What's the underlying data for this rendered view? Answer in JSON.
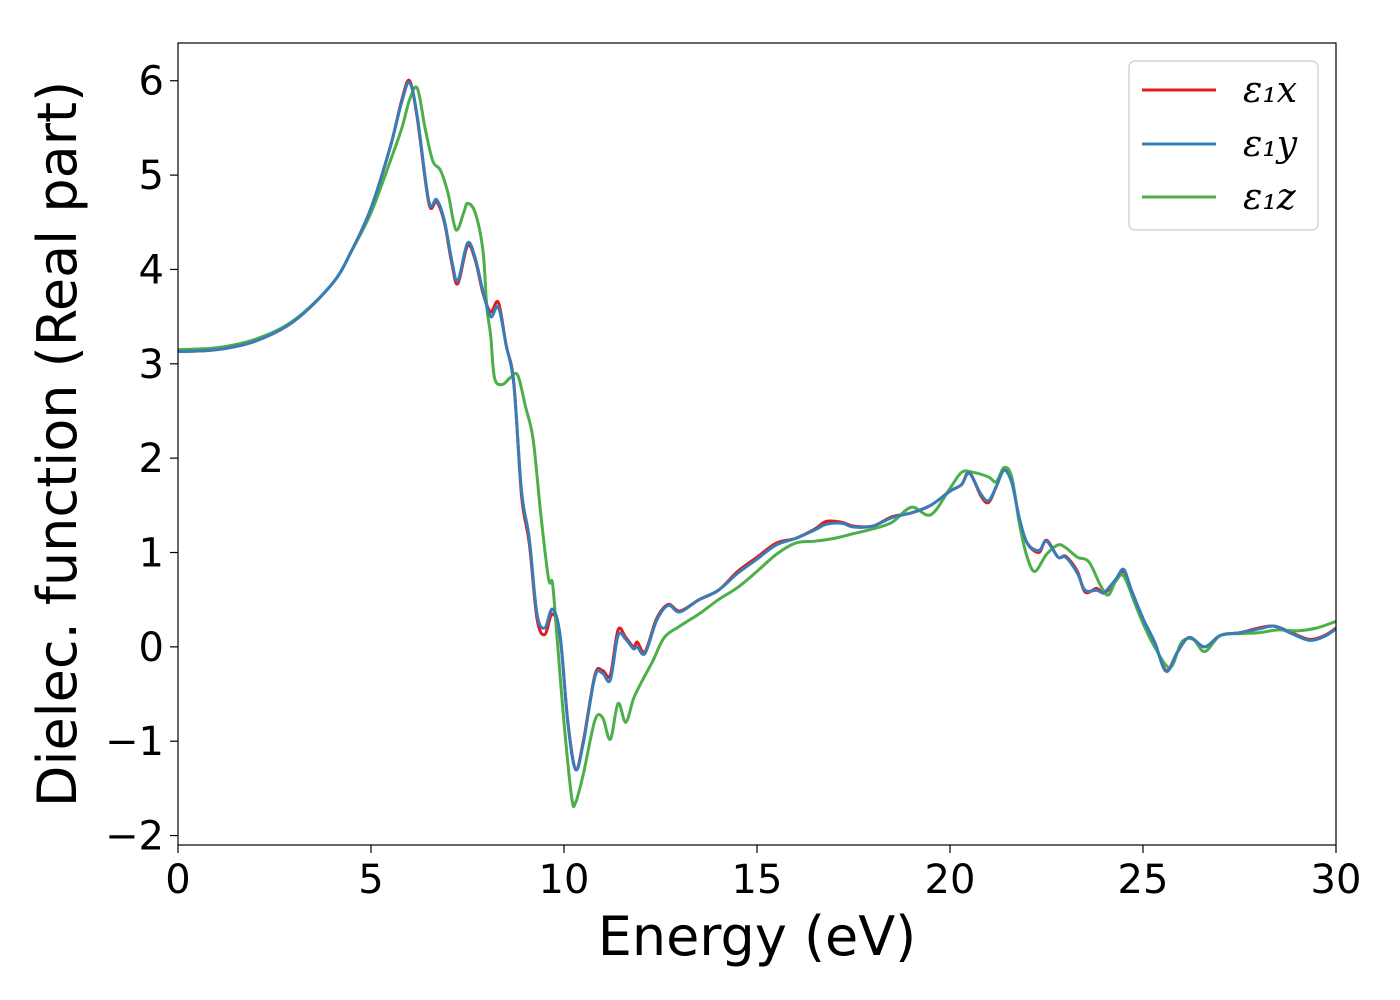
{
  "chart_data": {
    "type": "line",
    "title": "",
    "xlabel": "Energy (eV)",
    "ylabel": "Dielec. function (Real part)",
    "xlim": [
      0,
      30
    ],
    "ylim": [
      -2.1,
      6.4
    ],
    "xticks": [
      0,
      5,
      10,
      15,
      20,
      25,
      30
    ],
    "xtick_labels": [
      "0",
      "5",
      "10",
      "15",
      "20",
      "25",
      "30"
    ],
    "yticks": [
      -2,
      -1,
      0,
      1,
      2,
      3,
      4,
      5,
      6
    ],
    "ytick_labels": [
      "−2",
      "−1",
      "0",
      "1",
      "2",
      "3",
      "4",
      "5",
      "6"
    ],
    "grid": false,
    "legend_position": "top-right",
    "series": [
      {
        "name": "ε₁x",
        "color": "#e41a1c",
        "points": [
          [
            0,
            3.13
          ],
          [
            1,
            3.15
          ],
          [
            2,
            3.24
          ],
          [
            3,
            3.45
          ],
          [
            4,
            3.85
          ],
          [
            4.5,
            4.2
          ],
          [
            5,
            4.65
          ],
          [
            5.5,
            5.3
          ],
          [
            5.8,
            5.8
          ],
          [
            6.0,
            6.0
          ],
          [
            6.2,
            5.6
          ],
          [
            6.5,
            4.7
          ],
          [
            6.7,
            4.72
          ],
          [
            6.9,
            4.5
          ],
          [
            7.1,
            4.05
          ],
          [
            7.25,
            3.85
          ],
          [
            7.5,
            4.25
          ],
          [
            7.7,
            4.1
          ],
          [
            7.9,
            3.75
          ],
          [
            8.1,
            3.55
          ],
          [
            8.3,
            3.65
          ],
          [
            8.5,
            3.2
          ],
          [
            8.7,
            2.8
          ],
          [
            8.9,
            1.6
          ],
          [
            9.1,
            1.1
          ],
          [
            9.3,
            0.3
          ],
          [
            9.5,
            0.13
          ],
          [
            9.7,
            0.35
          ],
          [
            9.9,
            0.1
          ],
          [
            10.1,
            -0.8
          ],
          [
            10.3,
            -1.3
          ],
          [
            10.5,
            -1.0
          ],
          [
            10.8,
            -0.3
          ],
          [
            11.0,
            -0.25
          ],
          [
            11.2,
            -0.3
          ],
          [
            11.4,
            0.18
          ],
          [
            11.6,
            0.1
          ],
          [
            11.8,
            0.0
          ],
          [
            11.9,
            0.05
          ],
          [
            12.1,
            -0.05
          ],
          [
            12.4,
            0.3
          ],
          [
            12.7,
            0.45
          ],
          [
            13.0,
            0.38
          ],
          [
            13.5,
            0.5
          ],
          [
            14.0,
            0.6
          ],
          [
            14.5,
            0.8
          ],
          [
            15.0,
            0.95
          ],
          [
            15.5,
            1.1
          ],
          [
            16.0,
            1.15
          ],
          [
            16.5,
            1.25
          ],
          [
            16.8,
            1.33
          ],
          [
            17.2,
            1.32
          ],
          [
            17.5,
            1.28
          ],
          [
            18.0,
            1.28
          ],
          [
            18.5,
            1.38
          ],
          [
            19.0,
            1.42
          ],
          [
            19.5,
            1.5
          ],
          [
            20.0,
            1.65
          ],
          [
            20.3,
            1.72
          ],
          [
            20.5,
            1.85
          ],
          [
            20.8,
            1.6
          ],
          [
            21.0,
            1.53
          ],
          [
            21.2,
            1.7
          ],
          [
            21.4,
            1.88
          ],
          [
            21.6,
            1.75
          ],
          [
            21.8,
            1.35
          ],
          [
            22.0,
            1.1
          ],
          [
            22.3,
            1.0
          ],
          [
            22.5,
            1.13
          ],
          [
            22.8,
            0.95
          ],
          [
            23.0,
            0.96
          ],
          [
            23.3,
            0.8
          ],
          [
            23.5,
            0.58
          ],
          [
            23.8,
            0.62
          ],
          [
            24.0,
            0.57
          ],
          [
            24.3,
            0.7
          ],
          [
            24.5,
            0.8
          ],
          [
            24.7,
            0.6
          ],
          [
            25.0,
            0.3
          ],
          [
            25.3,
            0.05
          ],
          [
            25.6,
            -0.25
          ],
          [
            25.9,
            -0.05
          ],
          [
            26.2,
            0.1
          ],
          [
            26.6,
            0.0
          ],
          [
            27.0,
            0.12
          ],
          [
            27.5,
            0.15
          ],
          [
            28.0,
            0.2
          ],
          [
            28.4,
            0.22
          ],
          [
            28.8,
            0.16
          ],
          [
            29.3,
            0.08
          ],
          [
            29.7,
            0.12
          ],
          [
            30,
            0.2
          ]
        ]
      },
      {
        "name": "ε₁y",
        "color": "#377eb8",
        "points": [
          [
            0,
            3.13
          ],
          [
            1,
            3.15
          ],
          [
            2,
            3.24
          ],
          [
            3,
            3.45
          ],
          [
            4,
            3.85
          ],
          [
            4.5,
            4.2
          ],
          [
            5,
            4.65
          ],
          [
            5.5,
            5.3
          ],
          [
            5.8,
            5.78
          ],
          [
            6.0,
            5.98
          ],
          [
            6.2,
            5.62
          ],
          [
            6.5,
            4.72
          ],
          [
            6.7,
            4.74
          ],
          [
            6.9,
            4.52
          ],
          [
            7.1,
            4.08
          ],
          [
            7.25,
            3.88
          ],
          [
            7.5,
            4.28
          ],
          [
            7.7,
            4.12
          ],
          [
            7.9,
            3.77
          ],
          [
            8.1,
            3.5
          ],
          [
            8.3,
            3.6
          ],
          [
            8.5,
            3.2
          ],
          [
            8.7,
            2.78
          ],
          [
            8.9,
            1.65
          ],
          [
            9.1,
            1.15
          ],
          [
            9.3,
            0.35
          ],
          [
            9.5,
            0.2
          ],
          [
            9.7,
            0.4
          ],
          [
            9.9,
            0.12
          ],
          [
            10.1,
            -0.8
          ],
          [
            10.3,
            -1.3
          ],
          [
            10.5,
            -1.02
          ],
          [
            10.8,
            -0.32
          ],
          [
            11.0,
            -0.28
          ],
          [
            11.2,
            -0.35
          ],
          [
            11.4,
            0.12
          ],
          [
            11.6,
            0.08
          ],
          [
            11.8,
            -0.02
          ],
          [
            11.9,
            0.0
          ],
          [
            12.1,
            -0.07
          ],
          [
            12.4,
            0.28
          ],
          [
            12.7,
            0.44
          ],
          [
            13.0,
            0.37
          ],
          [
            13.5,
            0.5
          ],
          [
            14.0,
            0.6
          ],
          [
            14.5,
            0.78
          ],
          [
            15.0,
            0.93
          ],
          [
            15.5,
            1.08
          ],
          [
            16.0,
            1.15
          ],
          [
            16.5,
            1.24
          ],
          [
            16.8,
            1.3
          ],
          [
            17.2,
            1.31
          ],
          [
            17.5,
            1.27
          ],
          [
            18.0,
            1.28
          ],
          [
            18.5,
            1.37
          ],
          [
            19.0,
            1.42
          ],
          [
            19.5,
            1.5
          ],
          [
            20.0,
            1.65
          ],
          [
            20.3,
            1.72
          ],
          [
            20.5,
            1.84
          ],
          [
            20.8,
            1.62
          ],
          [
            21.0,
            1.55
          ],
          [
            21.2,
            1.7
          ],
          [
            21.4,
            1.87
          ],
          [
            21.6,
            1.74
          ],
          [
            21.8,
            1.36
          ],
          [
            22.0,
            1.1
          ],
          [
            22.3,
            1.02
          ],
          [
            22.5,
            1.12
          ],
          [
            22.8,
            0.95
          ],
          [
            23.0,
            0.95
          ],
          [
            23.3,
            0.78
          ],
          [
            23.5,
            0.6
          ],
          [
            23.8,
            0.6
          ],
          [
            24.0,
            0.58
          ],
          [
            24.3,
            0.72
          ],
          [
            24.5,
            0.82
          ],
          [
            24.7,
            0.6
          ],
          [
            25.0,
            0.3
          ],
          [
            25.3,
            0.05
          ],
          [
            25.6,
            -0.26
          ],
          [
            25.9,
            -0.05
          ],
          [
            26.2,
            0.1
          ],
          [
            26.6,
            0.0
          ],
          [
            27.0,
            0.12
          ],
          [
            27.5,
            0.15
          ],
          [
            28.0,
            0.19
          ],
          [
            28.4,
            0.22
          ],
          [
            28.8,
            0.15
          ],
          [
            29.3,
            0.07
          ],
          [
            29.7,
            0.11
          ],
          [
            30,
            0.19
          ]
        ]
      },
      {
        "name": "ε₁z",
        "color": "#4daf4a",
        "points": [
          [
            0,
            3.15
          ],
          [
            1,
            3.17
          ],
          [
            2,
            3.26
          ],
          [
            3,
            3.46
          ],
          [
            4,
            3.85
          ],
          [
            4.5,
            4.2
          ],
          [
            5,
            4.6
          ],
          [
            5.5,
            5.15
          ],
          [
            5.8,
            5.5
          ],
          [
            6.0,
            5.8
          ],
          [
            6.2,
            5.92
          ],
          [
            6.4,
            5.5
          ],
          [
            6.6,
            5.15
          ],
          [
            6.8,
            5.05
          ],
          [
            7.0,
            4.8
          ],
          [
            7.2,
            4.42
          ],
          [
            7.4,
            4.6
          ],
          [
            7.5,
            4.7
          ],
          [
            7.7,
            4.6
          ],
          [
            7.9,
            4.2
          ],
          [
            8.0,
            3.6
          ],
          [
            8.1,
            3.3
          ],
          [
            8.2,
            2.85
          ],
          [
            8.4,
            2.78
          ],
          [
            8.6,
            2.85
          ],
          [
            8.8,
            2.88
          ],
          [
            9.0,
            2.55
          ],
          [
            9.2,
            2.2
          ],
          [
            9.4,
            1.4
          ],
          [
            9.6,
            0.72
          ],
          [
            9.7,
            0.68
          ],
          [
            9.8,
            0.2
          ],
          [
            10.0,
            -0.8
          ],
          [
            10.2,
            -1.6
          ],
          [
            10.3,
            -1.65
          ],
          [
            10.5,
            -1.35
          ],
          [
            10.8,
            -0.78
          ],
          [
            11.0,
            -0.75
          ],
          [
            11.2,
            -0.98
          ],
          [
            11.4,
            -0.6
          ],
          [
            11.6,
            -0.8
          ],
          [
            11.8,
            -0.55
          ],
          [
            12.0,
            -0.38
          ],
          [
            12.3,
            -0.15
          ],
          [
            12.6,
            0.1
          ],
          [
            13.0,
            0.22
          ],
          [
            13.5,
            0.35
          ],
          [
            14.0,
            0.5
          ],
          [
            14.5,
            0.63
          ],
          [
            15.0,
            0.8
          ],
          [
            15.5,
            0.98
          ],
          [
            16.0,
            1.1
          ],
          [
            16.5,
            1.12
          ],
          [
            17.0,
            1.15
          ],
          [
            17.5,
            1.2
          ],
          [
            18.0,
            1.25
          ],
          [
            18.5,
            1.32
          ],
          [
            19.0,
            1.48
          ],
          [
            19.5,
            1.4
          ],
          [
            20.0,
            1.68
          ],
          [
            20.3,
            1.85
          ],
          [
            20.6,
            1.85
          ],
          [
            21.0,
            1.8
          ],
          [
            21.2,
            1.75
          ],
          [
            21.4,
            1.9
          ],
          [
            21.6,
            1.8
          ],
          [
            21.8,
            1.3
          ],
          [
            22.0,
            0.95
          ],
          [
            22.2,
            0.8
          ],
          [
            22.5,
            0.98
          ],
          [
            22.8,
            1.08
          ],
          [
            23.0,
            1.05
          ],
          [
            23.3,
            0.95
          ],
          [
            23.6,
            0.9
          ],
          [
            23.9,
            0.65
          ],
          [
            24.1,
            0.55
          ],
          [
            24.3,
            0.7
          ],
          [
            24.5,
            0.75
          ],
          [
            24.8,
            0.45
          ],
          [
            25.0,
            0.25
          ],
          [
            25.3,
            0.0
          ],
          [
            25.7,
            -0.22
          ],
          [
            26.0,
            0.05
          ],
          [
            26.3,
            0.08
          ],
          [
            26.6,
            -0.05
          ],
          [
            27.0,
            0.12
          ],
          [
            27.5,
            0.14
          ],
          [
            28.0,
            0.15
          ],
          [
            28.5,
            0.18
          ],
          [
            29.0,
            0.17
          ],
          [
            29.5,
            0.2
          ],
          [
            30,
            0.27
          ]
        ]
      }
    ]
  }
}
